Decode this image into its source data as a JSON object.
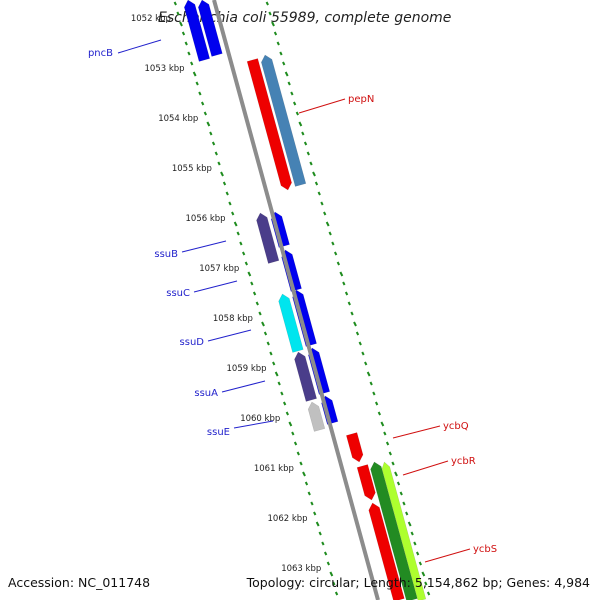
{
  "title": "Escherichia coli 55989, complete genome",
  "footer": {
    "accession": "Accession: NC_011748",
    "summary": "Topology: circular; Length: 5,154,862 bp; Genes: 4,984"
  },
  "colors": {
    "backbone": "#8c8c8c",
    "tick": "#1e8c1e",
    "label_left": "#2222cc",
    "label_right": "#d01010"
  },
  "scale_labels": [
    "1052 kbp",
    "1053 kbp",
    "1054 kbp",
    "1055 kbp",
    "1056 kbp",
    "1057 kbp",
    "1058 kbp",
    "1059 kbp",
    "1060 kbp",
    "1061 kbp",
    "1062 kbp",
    "1063 kbp"
  ],
  "gene_labels_left": [
    "pncB",
    "ssuB",
    "ssuC",
    "ssuD",
    "ssuA",
    "ssuE"
  ],
  "gene_labels_right": [
    "pepN",
    "ycbQ",
    "ycbR",
    "ycbS"
  ]
}
